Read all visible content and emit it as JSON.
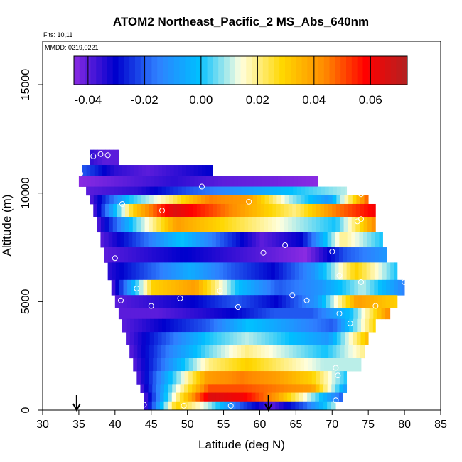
{
  "chart_data": {
    "type": "heatmap",
    "title": "ATOM2 Northeast_Pacific_2 MS_Abs_640nm",
    "flights_label": "Flts: 10,11",
    "dates_label": "MMDD: 0219,0221",
    "xlabel": "Latitude (deg N)",
    "ylabel": "Altitude (m)",
    "xlim": [
      30,
      85
    ],
    "ylim": [
      0,
      17000
    ],
    "x_ticks": [
      30,
      35,
      40,
      45,
      50,
      55,
      60,
      65,
      70,
      75,
      80,
      85
    ],
    "y_ticks": [
      0,
      5000,
      10000,
      15000
    ],
    "colorbar": {
      "range": [
        -0.045,
        0.073
      ],
      "ticks": [
        -0.04,
        -0.02,
        0.0,
        0.02,
        0.04,
        0.06
      ],
      "tick_labels": [
        "-0.04",
        "-0.02",
        "0.00",
        "0.02",
        "0.04",
        "0.06"
      ],
      "colors": [
        "#8a2be2",
        "#0000cd",
        "#2f7fff",
        "#00bfff",
        "#ffffe0",
        "#ffd700",
        "#ff8c00",
        "#ff0000",
        "#b22222"
      ]
    },
    "bands": [
      {
        "alt": [
          11300,
          12000
        ],
        "lat": [
          36.5,
          40.5
        ],
        "values": [
          -0.035,
          -0.04,
          -0.04
        ]
      },
      {
        "alt": [
          10800,
          11300
        ],
        "lat": [
          35.5,
          53.5
        ],
        "values": [
          -0.02,
          -0.035,
          -0.04,
          -0.035,
          -0.03
        ]
      },
      {
        "alt": [
          10300,
          10800
        ],
        "lat": [
          35.0,
          68.0
        ],
        "values": [
          -0.045,
          -0.04,
          -0.035,
          -0.04,
          -0.042,
          -0.045
        ]
      },
      {
        "alt": [
          9900,
          10300
        ],
        "lat": [
          36.0,
          72.0
        ],
        "values": [
          -0.04,
          -0.035,
          -0.02,
          -0.01,
          0.0,
          0.01
        ]
      },
      {
        "alt": [
          9500,
          9900
        ],
        "lat": [
          36.5,
          75.0
        ],
        "values": [
          -0.04,
          0.0,
          0.02,
          0.045,
          0.04,
          0.01,
          -0.01,
          0.05
        ]
      },
      {
        "alt": [
          8900,
          9500
        ],
        "lat": [
          37.0,
          76.0
        ],
        "values": [
          -0.04,
          0.03,
          0.065,
          0.05,
          0.035,
          0.02,
          0.045,
          0.06
        ]
      },
      {
        "alt": [
          8200,
          8900
        ],
        "lat": [
          37.5,
          76.0
        ],
        "values": [
          -0.04,
          0.005,
          0.04,
          0.03,
          0.02,
          0.01,
          0.0,
          0.045
        ]
      },
      {
        "alt": [
          7500,
          8200
        ],
        "lat": [
          38.0,
          77.0
        ],
        "values": [
          -0.04,
          -0.02,
          0.0,
          -0.02,
          -0.04,
          -0.03,
          0.02,
          0.0
        ]
      },
      {
        "alt": [
          6800,
          7500
        ],
        "lat": [
          38.5,
          77.5
        ],
        "values": [
          -0.04,
          -0.035,
          -0.03,
          -0.035,
          -0.04,
          -0.045,
          -0.02,
          -0.01
        ]
      },
      {
        "alt": [
          6000,
          6800
        ],
        "lat": [
          39.0,
          79.0
        ],
        "values": [
          -0.035,
          -0.02,
          -0.005,
          -0.02,
          -0.03,
          -0.01,
          0.03,
          0.0
        ]
      },
      {
        "alt": [
          5300,
          6000
        ],
        "lat": [
          39.5,
          80.0
        ],
        "values": [
          -0.04,
          0.03,
          0.04,
          0.0,
          -0.02,
          -0.01,
          0.01,
          -0.015
        ]
      },
      {
        "alt": [
          4700,
          5300
        ],
        "lat": [
          40.0,
          79.0
        ],
        "values": [
          -0.04,
          -0.035,
          -0.03,
          -0.02,
          -0.03,
          -0.01,
          0.04,
          0.03
        ]
      },
      {
        "alt": [
          4200,
          4700
        ],
        "lat": [
          40.5,
          78.0
        ],
        "values": [
          -0.04,
          -0.04,
          -0.035,
          -0.03,
          -0.02,
          -0.02,
          0.0,
          0.045
        ]
      },
      {
        "alt": [
          3600,
          4200
        ],
        "lat": [
          41.0,
          76.0
        ],
        "values": [
          -0.04,
          -0.03,
          -0.02,
          0.0,
          -0.01,
          -0.02,
          0.03
        ]
      },
      {
        "alt": [
          3000,
          3600
        ],
        "lat": [
          41.5,
          75.0
        ],
        "values": [
          -0.04,
          -0.02,
          0.0,
          0.01,
          0.0,
          -0.01,
          0.035
        ]
      },
      {
        "alt": [
          2400,
          3000
        ],
        "lat": [
          42.0,
          74.5
        ],
        "values": [
          -0.04,
          -0.015,
          0.005,
          0.02,
          0.01,
          0.0,
          0.02
        ]
      },
      {
        "alt": [
          1800,
          2400
        ],
        "lat": [
          42.5,
          74.0
        ],
        "values": [
          -0.04,
          -0.01,
          0.02,
          0.03,
          0.02,
          0.01,
          0.01
        ]
      },
      {
        "alt": [
          1200,
          1800
        ],
        "lat": [
          43.0,
          72.0
        ],
        "values": [
          -0.04,
          0.0,
          0.04,
          0.045,
          0.04,
          0.03,
          0.0
        ]
      },
      {
        "alt": [
          800,
          1200
        ],
        "lat": [
          43.5,
          72.0
        ],
        "values": [
          -0.04,
          0.01,
          0.05,
          0.05,
          0.045,
          0.04,
          -0.01
        ]
      },
      {
        "alt": [
          400,
          800
        ],
        "lat": [
          44.0,
          71.5
        ],
        "values": [
          -0.04,
          0.02,
          0.065,
          0.06,
          0.04,
          0.01,
          -0.02
        ]
      },
      {
        "alt": [
          0,
          400
        ],
        "lat": [
          44.0,
          70.5
        ],
        "values": [
          -0.04,
          0.03,
          0.01,
          -0.02,
          -0.04,
          -0.02,
          0.01
        ]
      }
    ],
    "sample_points": [
      [
        37.0,
        11700
      ],
      [
        38.0,
        11800
      ],
      [
        39.0,
        11750
      ],
      [
        35.2,
        10900
      ],
      [
        52.0,
        10300
      ],
      [
        74.0,
        9950
      ],
      [
        41.0,
        9500
      ],
      [
        58.5,
        9600
      ],
      [
        77.0,
        9600
      ],
      [
        78.0,
        9550
      ],
      [
        46.5,
        9200
      ],
      [
        73.5,
        8700
      ],
      [
        74.0,
        8800
      ],
      [
        63.5,
        7600
      ],
      [
        60.5,
        7250
      ],
      [
        70.0,
        7300
      ],
      [
        40.0,
        7000
      ],
      [
        71.0,
        6200
      ],
      [
        74.0,
        5900
      ],
      [
        80.0,
        5900
      ],
      [
        43.0,
        5600
      ],
      [
        54.5,
        5500
      ],
      [
        49.0,
        5150
      ],
      [
        64.5,
        5300
      ],
      [
        66.5,
        5050
      ],
      [
        40.8,
        5050
      ],
      [
        45.0,
        4800
      ],
      [
        57.0,
        4750
      ],
      [
        76.0,
        4800
      ],
      [
        71.0,
        4450
      ],
      [
        72.5,
        4000
      ],
      [
        70.5,
        1950
      ],
      [
        70.8,
        1600
      ],
      [
        73.0,
        500
      ],
      [
        40.5,
        200
      ],
      [
        44.0,
        250
      ],
      [
        49.5,
        200
      ],
      [
        56.0,
        200
      ],
      [
        70.5,
        450
      ]
    ],
    "markers": [
      34.7,
      61.2
    ]
  }
}
